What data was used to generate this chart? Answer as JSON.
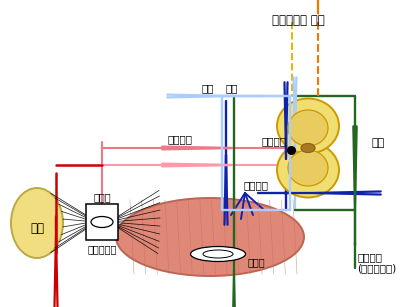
{
  "bg_color": "#ffffff",
  "colors": {
    "red_dark": "#cc0000",
    "red_light": "#ee7788",
    "pink": "#ff99aa",
    "blue_dark": "#1122aa",
    "blue_light": "#88aaee",
    "light_blue": "#aaccff",
    "orange": "#ee7700",
    "green": "#226622",
    "yellow_line": "#ddbb00",
    "muscle_fill": "#e08878",
    "muscle_edge": "#bb6655",
    "joint_fill": "#f0de80",
    "spine_fill": "#f0de70",
    "spine_outline": "#cc9900",
    "gray_matter": "#e8cc60",
    "central_fill": "#aa7722",
    "stria": "#c07060"
  },
  "labels": {
    "brain_info": "뇌로부터의 정보",
    "spinal_cord": "척수",
    "static": "정적",
    "dynamic": "동적",
    "sensory_nerve": "감각신경",
    "spinal_cell": "척수세포",
    "motor_nerve": "운동신경",
    "joint": "관절",
    "spindle_top": "근방추",
    "tendon_organ": "근건이행부",
    "spindle_bottom": "근방추",
    "motor_nerve2": "운동신경\n(중운동신경)"
  }
}
